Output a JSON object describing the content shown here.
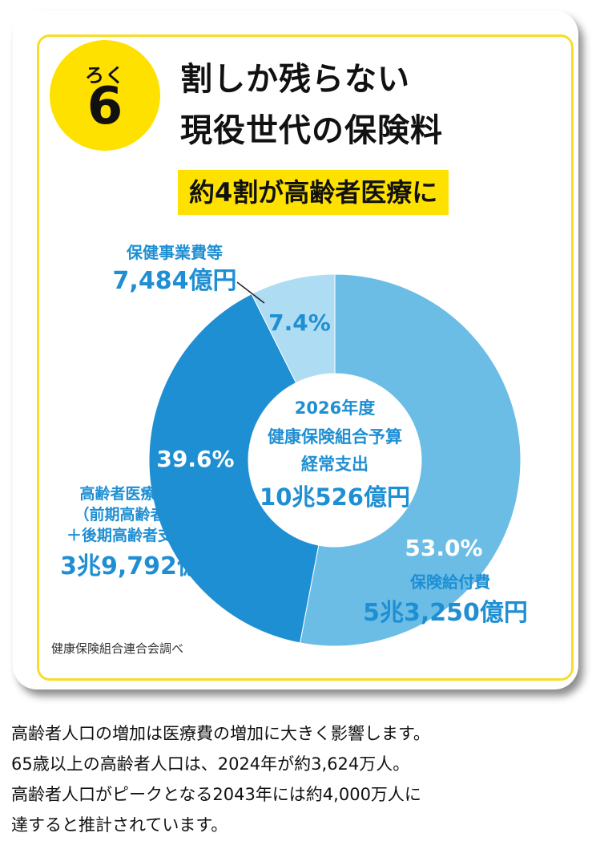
{
  "badge": {
    "reading": "ろく",
    "number": "6"
  },
  "title": {
    "line1": "割しか残らない",
    "line2": "現役世代の保険料"
  },
  "subtitle": "約4割が高齢者医療に",
  "chart_data": {
    "type": "pie",
    "donut": true,
    "center_label": [
      "2026年度",
      "健康保険組合予算",
      "経常支出",
      "10兆526億円"
    ],
    "slices": [
      {
        "label": "保険給付費",
        "amount": "5兆3,250億円",
        "percent": 53.0,
        "percent_label": "53.0%",
        "color": "#6bbde6"
      },
      {
        "label": "高齢者医療への支援",
        "detail": [
          "（前期高齢者納付金",
          "＋後期高齢者支援金）"
        ],
        "amount": "3兆9,792億円",
        "percent": 39.6,
        "percent_label": "39.6%",
        "color": "#1f8fd3"
      },
      {
        "label": "保健事業費等",
        "amount": "7,484億円",
        "percent": 7.4,
        "percent_label": "7.4%",
        "color": "#aedcf3"
      }
    ]
  },
  "source": "健康保険組合連合会調べ",
  "body": [
    "高齢者人口の増加は医療費の増加に大きく影響します。",
    "65歳以上の高齢者人口は、2024年が約3,624万人。",
    "高齢者人口がピークとなる2043年には約4,000万人に",
    "達すると推計されています。"
  ]
}
